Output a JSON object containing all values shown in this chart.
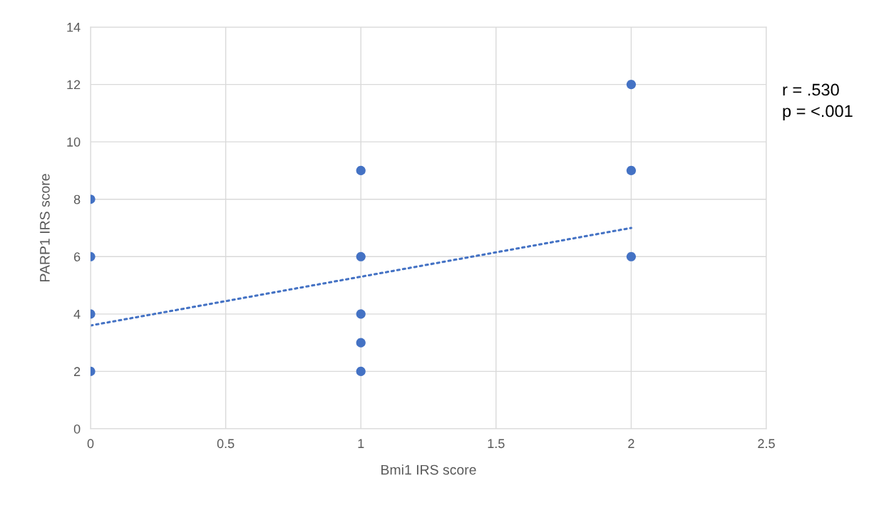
{
  "chart_data": {
    "type": "scatter",
    "xlabel": "Bmi1 IRS score",
    "ylabel": "PARP1 IRS score",
    "annotations": [
      "r = .530",
      "p = <.001"
    ],
    "series": [
      {
        "color": "#4472c4",
        "x": [
          0,
          0,
          0,
          0,
          1,
          1,
          1,
          1,
          1,
          2,
          2,
          2
        ],
        "values": [
          8,
          6,
          4,
          2,
          9,
          6,
          4,
          3,
          2,
          12,
          9,
          6
        ],
        "marker": "circle"
      },
      {
        "type": "line",
        "color": "#4472c4",
        "x": [
          0,
          2
        ],
        "values": [
          3.6,
          7.0
        ],
        "line_style": "dotted",
        "marker": "none"
      }
    ],
    "xlim": [
      0,
      2.5
    ],
    "xticks": [
      0,
      0.5,
      1,
      1.5,
      2,
      2.5
    ],
    "ylim": [
      0,
      14
    ],
    "yticks": [
      0,
      2,
      4,
      6,
      8,
      10,
      12,
      14
    ],
    "grid": true,
    "legend": false
  }
}
